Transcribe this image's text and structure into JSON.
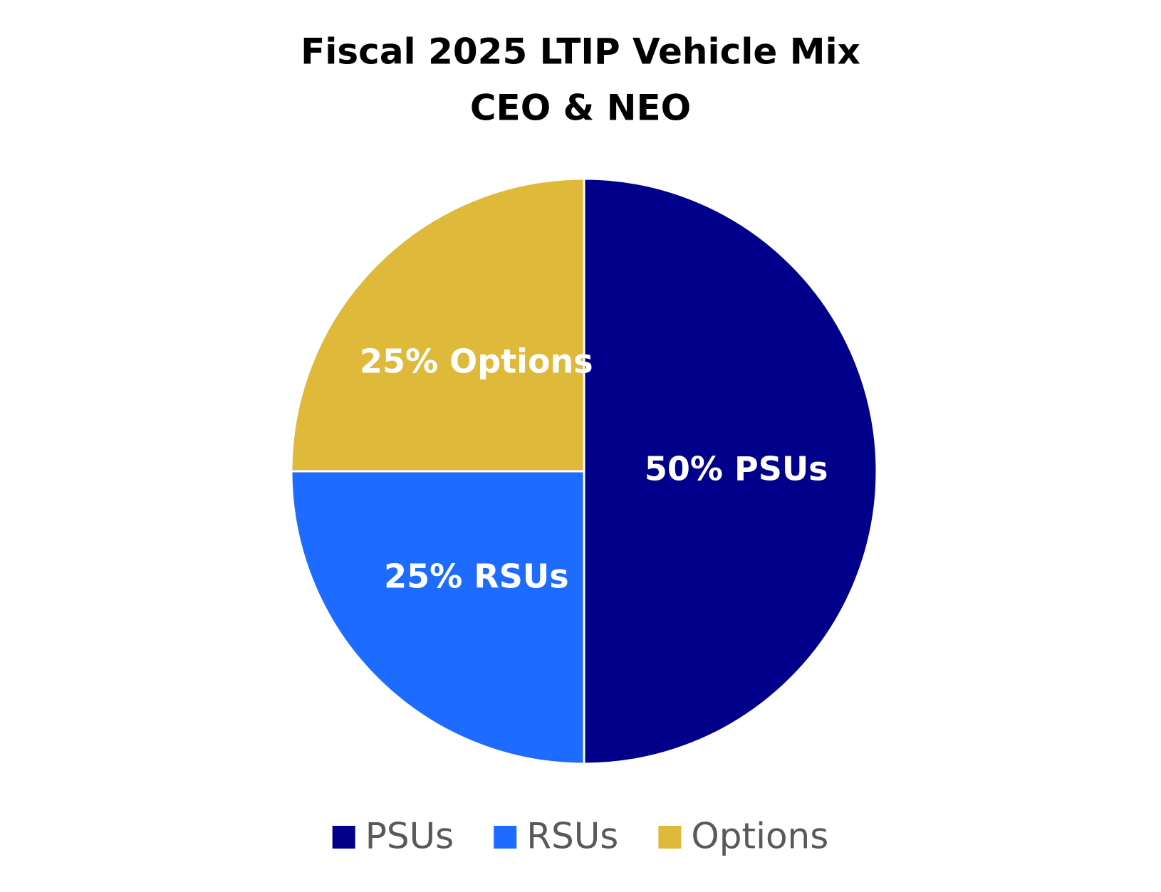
{
  "chart_data": {
    "type": "pie",
    "title": "Fiscal 2025 LTIP Vehicle Mix",
    "subtitle": "CEO & NEO",
    "categories": [
      "PSUs",
      "RSUs",
      "Options"
    ],
    "values": [
      50,
      25,
      25
    ],
    "value_labels": [
      "50% PSUs",
      "25% RSUs",
      "25% Options"
    ],
    "colors": [
      "#00008b",
      "#1e6bff",
      "#dfba3a"
    ],
    "legend": "bottom"
  }
}
